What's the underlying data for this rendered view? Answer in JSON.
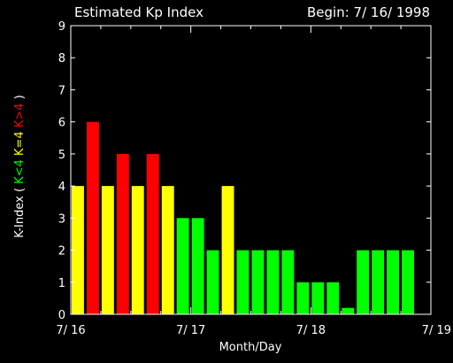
{
  "chart_data": {
    "type": "bar",
    "title": "Estimated Kp Index",
    "begin_label": "Begin: 7/ 16/ 1998",
    "xlabel": "Month/Day",
    "ylabel": {
      "prefix": "K-Index ( ",
      "lt": "K<4",
      "eq": "K=4",
      "gt": "K>4",
      "suffix": " )"
    },
    "ylim": [
      0,
      9
    ],
    "yticks": [
      "0",
      "1",
      "2",
      "3",
      "4",
      "5",
      "6",
      "7",
      "8",
      "9"
    ],
    "xticks": [
      "7/ 16",
      "7/ 17",
      "7/ 18",
      "7/ 19"
    ],
    "bars_per_day": 8,
    "values": [
      4,
      6,
      4,
      5,
      4,
      5,
      4,
      3,
      3,
      2,
      4,
      2,
      2,
      2,
      2,
      1,
      1,
      1,
      0.2,
      2,
      2,
      2,
      2
    ],
    "colors": {
      "low": "#00ff00",
      "equal": "#ffff00",
      "high": "#ff0000",
      "axis": "#ffffff"
    }
  }
}
